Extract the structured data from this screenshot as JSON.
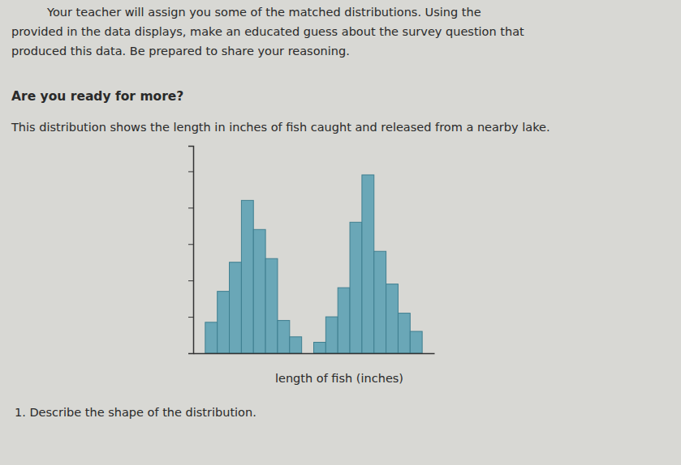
{
  "page": {
    "intro_lines": [
      "Your teacher will assign you some of the matched distributions. Using the",
      "provided in the data displays, make an educated guess about the survey question that",
      "produced this data. Be prepared to share your reasoning."
    ],
    "heading": "Are you ready for more?",
    "description": "This distribution shows the length in inches of fish caught and released from a nearby lake.",
    "question": "1. Describe the shape of the distribution."
  },
  "chart_data": {
    "type": "histogram",
    "bins": [
      1,
      2,
      3,
      4,
      5,
      6,
      7,
      8,
      9,
      10,
      11,
      12,
      13,
      14,
      15,
      16,
      17,
      18,
      19
    ],
    "counts": [
      0.85,
      1.7,
      2.5,
      4.2,
      3.4,
      2.6,
      0.9,
      0.45,
      0,
      0.3,
      1.0,
      1.8,
      3.6,
      4.9,
      2.8,
      1.9,
      1.1,
      0.6
    ],
    "xlabel": "length of fish (inches)",
    "xlim": [
      0,
      20
    ],
    "ylim": [
      0,
      5.7
    ],
    "yticks": [
      1,
      2,
      3,
      4,
      5
    ],
    "tick_labels": false,
    "color": "#6aa7b7"
  }
}
